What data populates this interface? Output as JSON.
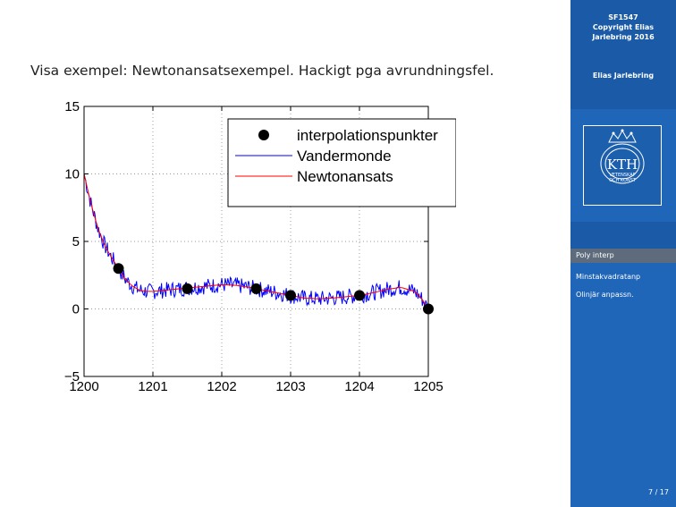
{
  "slide": {
    "text": "Visa exempel: Newtonansatsexempel. Hackigt pga avrundningsfel."
  },
  "sidebar": {
    "title_lines": [
      "SF1547",
      "Copyright Elias",
      "Jarlebring 2016"
    ],
    "author": "Elias Jarlebring",
    "logo_text": "KTH",
    "logo_sub": [
      "VETENSKAP",
      "OCH KONST"
    ],
    "nav": [
      "Poly interp",
      "Minstakvadratanp",
      "Olinjär anpassn."
    ],
    "page": "7 / 17"
  },
  "colors": {
    "sidebar": "#1f66b8",
    "vandermonde": "#0000ff",
    "newton": "#ff0000",
    "points": "#000000"
  },
  "chart_data": {
    "type": "line",
    "xlim": [
      1200,
      1205
    ],
    "ylim": [
      -5,
      15
    ],
    "xticks": [
      1200,
      1201,
      1202,
      1203,
      1204,
      1205
    ],
    "yticks": [
      -5,
      0,
      5,
      10,
      15
    ],
    "xtick_labels": [
      "1200",
      "1201",
      "1202",
      "1203",
      "1204",
      "1205"
    ],
    "ytick_labels": [
      "−5",
      "0",
      "5",
      "10",
      "15"
    ],
    "grid": true,
    "legend_position": "top-right",
    "points": {
      "name": "interpolationspunkter",
      "x": [
        1200.5,
        1201.5,
        1202.5,
        1203.0,
        1204.0,
        1205.0
      ],
      "y": [
        3.0,
        1.5,
        1.5,
        1.0,
        1.0,
        0.0
      ]
    },
    "series": [
      {
        "name": "Vandermonde",
        "x": [
          1200,
          1200.1,
          1200.2,
          1200.3,
          1200.4,
          1200.5,
          1200.6,
          1200.7,
          1200.8,
          1200.9,
          1201,
          1201.2,
          1201.4,
          1201.6,
          1201.8,
          1202,
          1202.2,
          1202.4,
          1202.6,
          1202.8,
          1203,
          1203.2,
          1203.4,
          1203.6,
          1203.8,
          1204,
          1204.2,
          1204.4,
          1204.6,
          1204.8,
          1204.9,
          1205
        ],
        "y": [
          10,
          7.8,
          6.0,
          4.7,
          3.8,
          3.0,
          2.2,
          1.7,
          1.4,
          1.3,
          1.3,
          1.4,
          1.5,
          1.6,
          1.7,
          1.8,
          1.75,
          1.6,
          1.4,
          1.2,
          1.0,
          0.8,
          0.75,
          0.8,
          0.9,
          1.0,
          1.2,
          1.45,
          1.6,
          1.3,
          0.8,
          0.0
        ],
        "noise": 0.6
      },
      {
        "name": "Newtonansats",
        "x": [
          1200,
          1200.1,
          1200.2,
          1200.3,
          1200.4,
          1200.5,
          1200.6,
          1200.7,
          1200.8,
          1200.9,
          1201,
          1201.2,
          1201.4,
          1201.6,
          1201.8,
          1202,
          1202.2,
          1202.4,
          1202.6,
          1202.8,
          1203,
          1203.2,
          1203.4,
          1203.6,
          1203.8,
          1204,
          1204.2,
          1204.4,
          1204.6,
          1204.8,
          1204.9,
          1205
        ],
        "y": [
          10,
          7.8,
          6.0,
          4.7,
          3.8,
          3.0,
          2.2,
          1.7,
          1.4,
          1.3,
          1.3,
          1.4,
          1.5,
          1.6,
          1.7,
          1.8,
          1.75,
          1.6,
          1.4,
          1.2,
          1.0,
          0.8,
          0.75,
          0.8,
          0.9,
          1.0,
          1.2,
          1.45,
          1.6,
          1.3,
          0.8,
          0.0
        ],
        "noise": 0.0
      }
    ]
  }
}
